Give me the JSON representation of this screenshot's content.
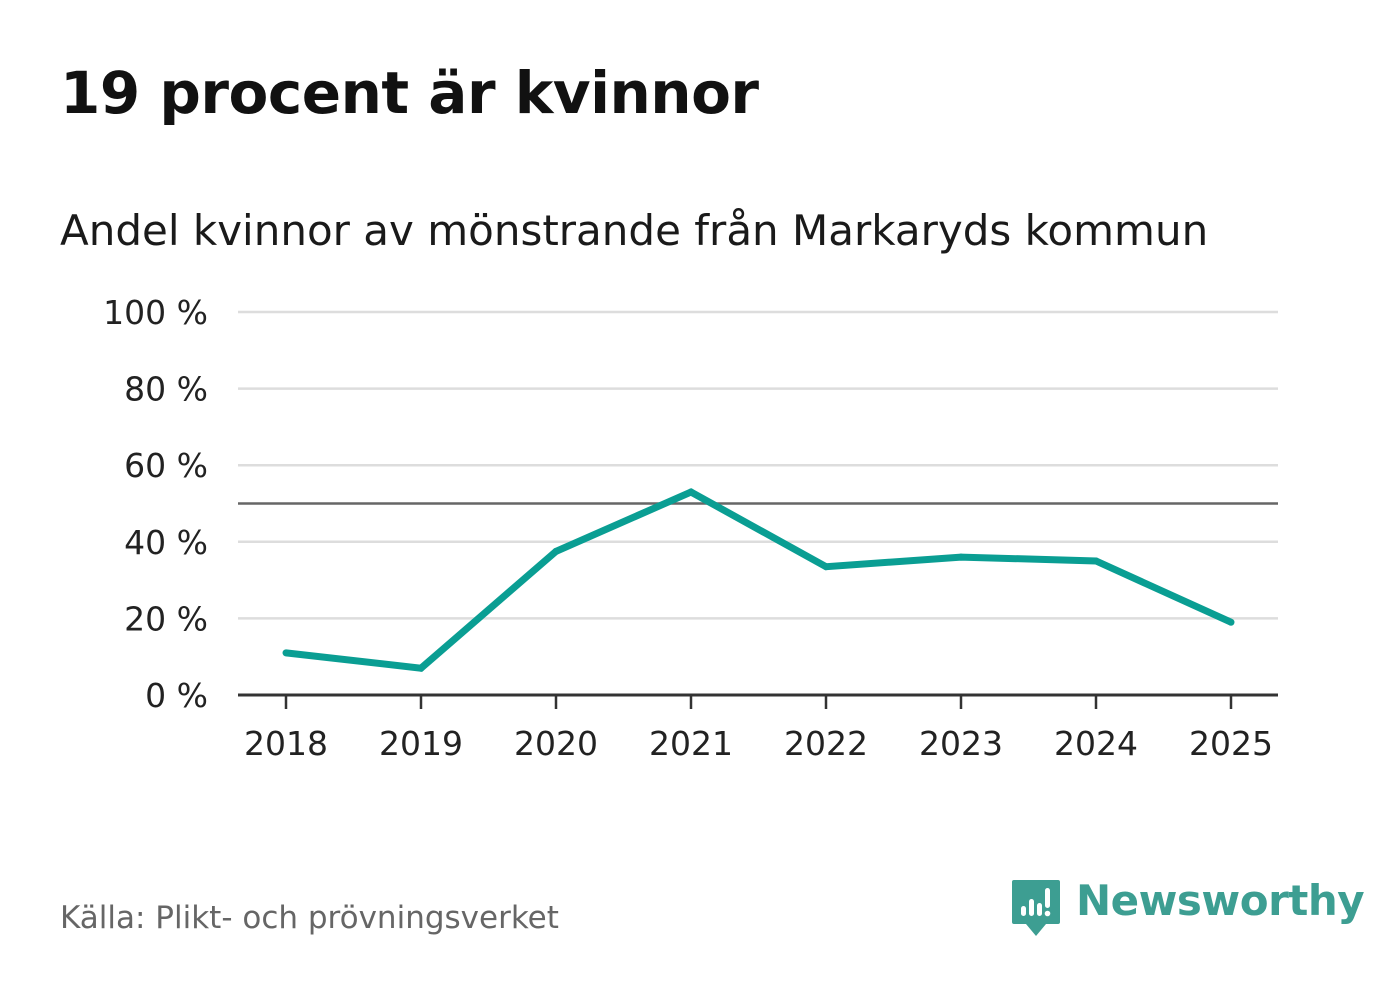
{
  "headline": "19 procent är kvinnor",
  "subtitle": "Andel kvinnor av mönstrande från Markaryds kommun",
  "source": "Källa: Plikt- och prövningsverket",
  "brand": "Newsworthy",
  "colors": {
    "line": "#0a9e93",
    "grid": "#dddddd",
    "reference": "#666666",
    "axis": "#333333",
    "brand": "#3d9e92"
  },
  "chart_data": {
    "type": "line",
    "title": "Andel kvinnor av mönstrande från Markaryds kommun",
    "xlabel": "",
    "ylabel": "",
    "categories": [
      "2018",
      "2019",
      "2020",
      "2021",
      "2022",
      "2023",
      "2024",
      "2025"
    ],
    "series": [
      {
        "name": "Andel kvinnor",
        "values": [
          11,
          7,
          37.5,
          53,
          33.5,
          36,
          35,
          19
        ]
      }
    ],
    "ylim": [
      0,
      100
    ],
    "yticks": [
      0,
      20,
      40,
      60,
      80,
      100
    ],
    "ytick_labels": [
      "0 %",
      "20 %",
      "40 %",
      "60 %",
      "80 %",
      "100 %"
    ],
    "reference_line": 50,
    "grid": true,
    "legend": "none"
  }
}
